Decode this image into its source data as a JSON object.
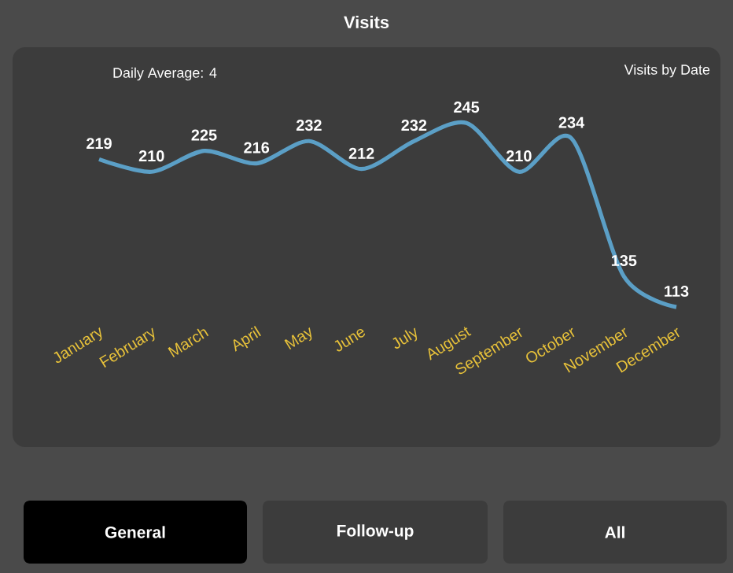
{
  "chart_data": {
    "type": "line",
    "title": "Visits",
    "subtitle": "Visits by Date",
    "annotations": [
      "Daily Average: 4",
      "General",
      "Follow-up",
      "All"
    ],
    "categories": [
      "January",
      "February",
      "March",
      "April",
      "May",
      "June",
      "July",
      "August",
      "September",
      "October",
      "November",
      "December"
    ],
    "values": [
      219,
      210,
      225,
      216,
      232,
      212,
      232,
      245,
      210,
      234,
      135,
      113
    ],
    "color": "#5b9fc6",
    "data_labels": true,
    "marker": "none"
  }
}
